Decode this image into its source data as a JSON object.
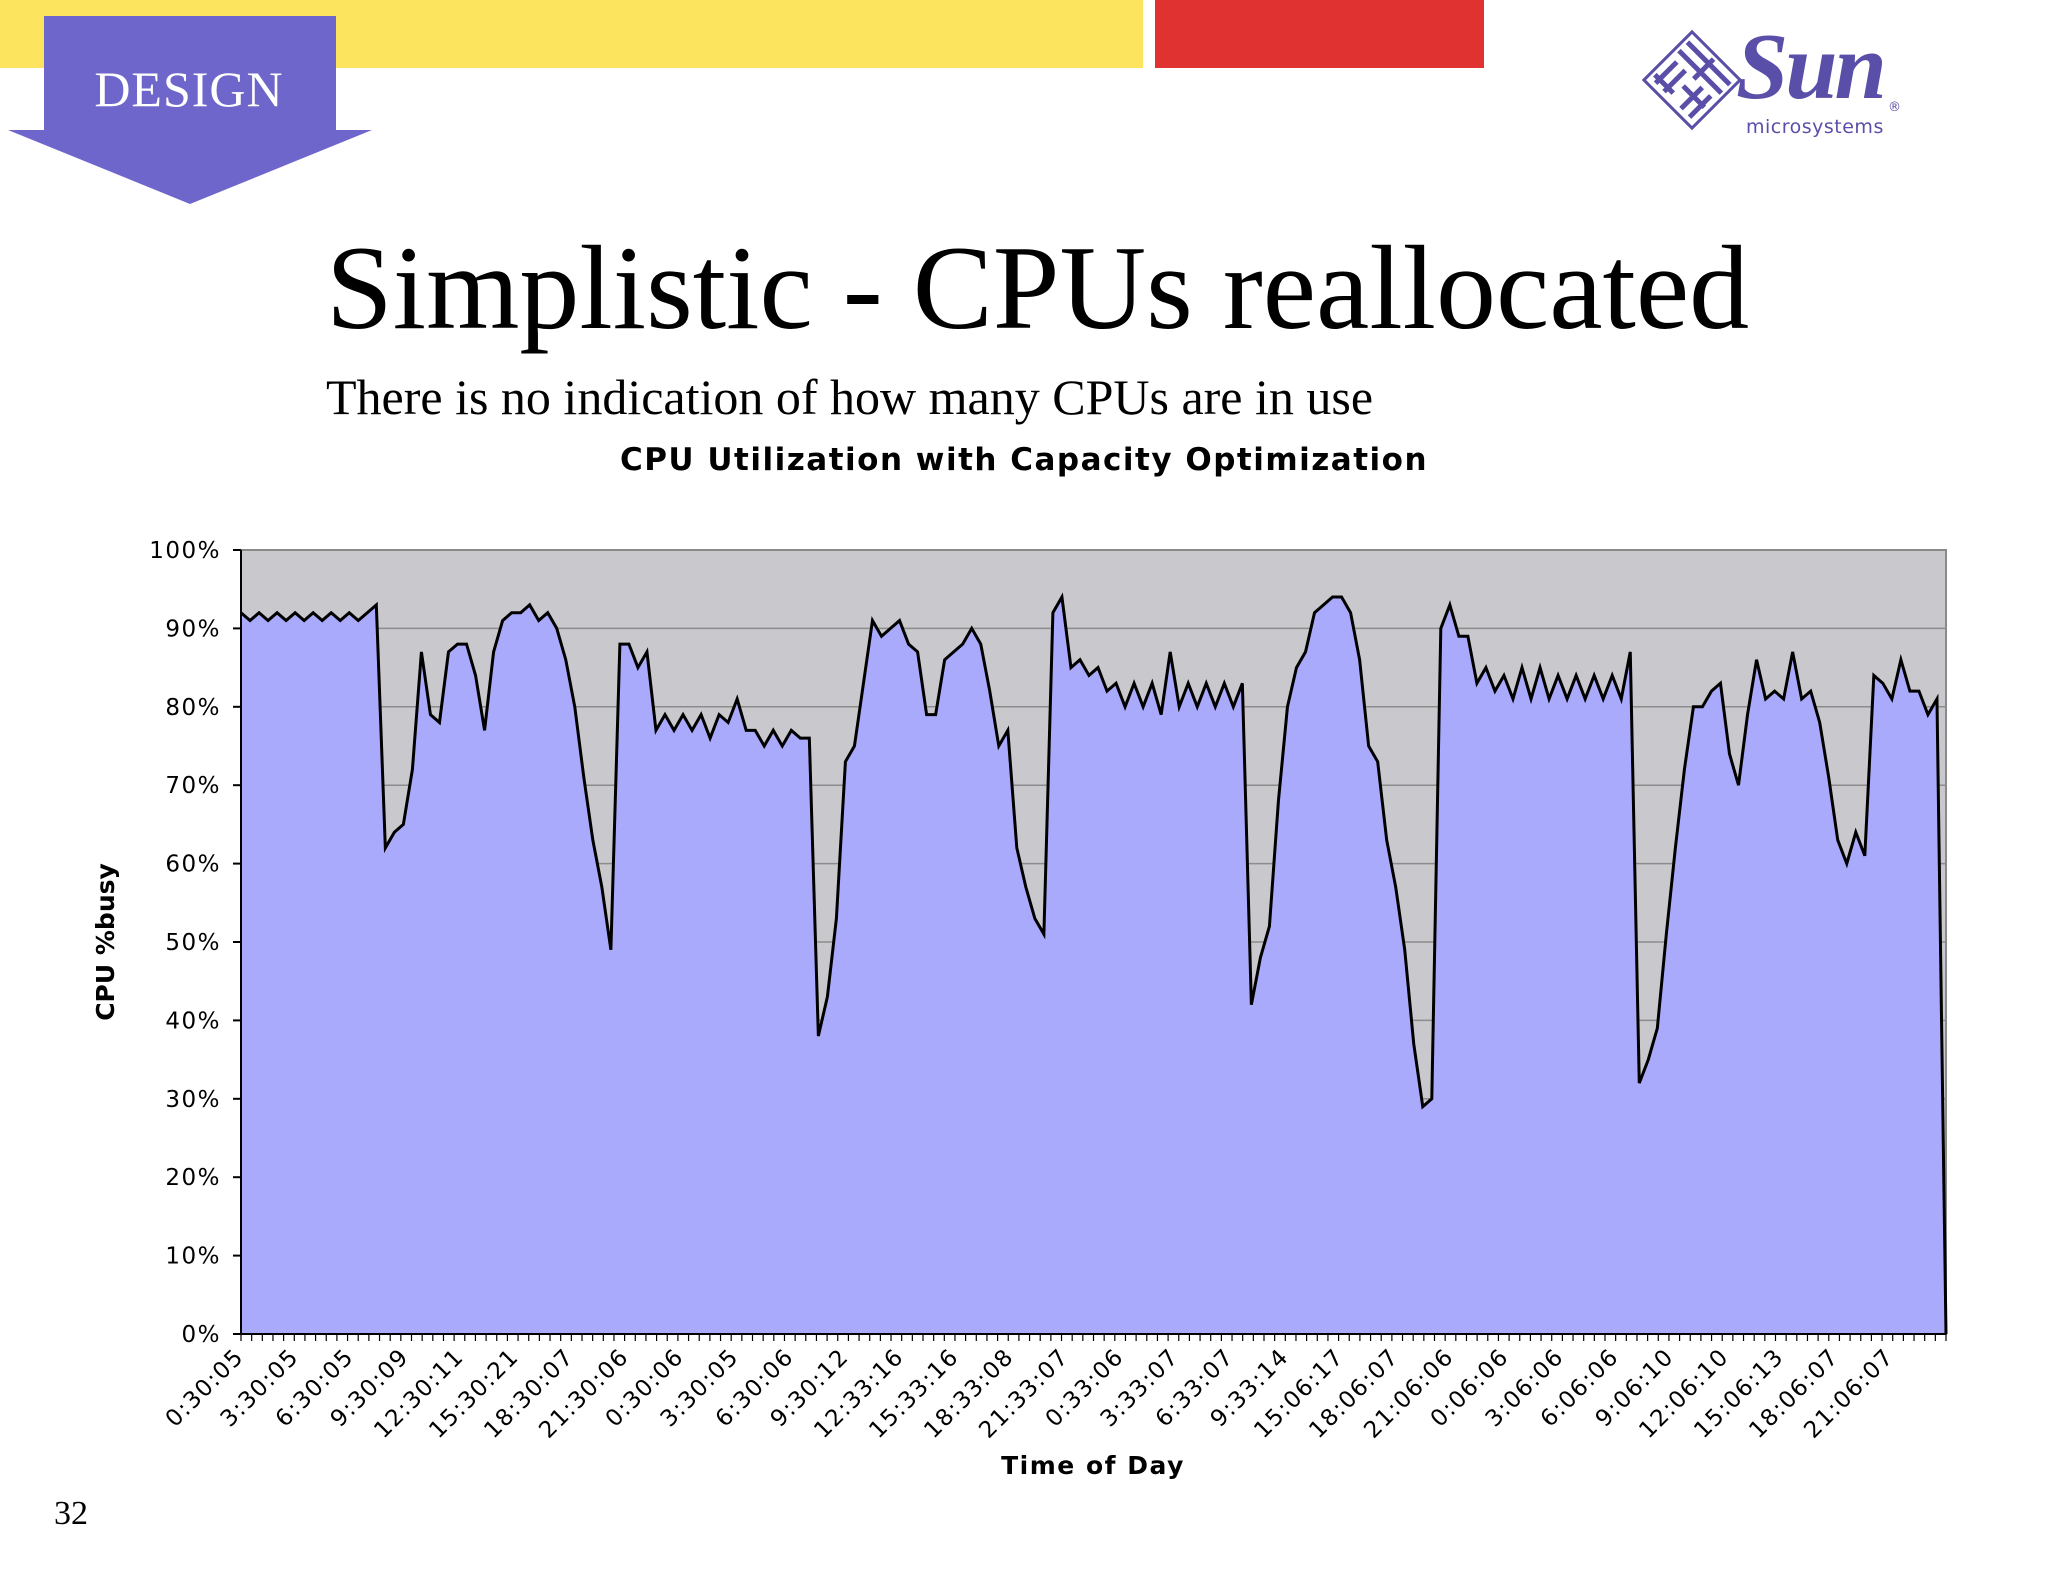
{
  "slide": {
    "section_label": "DESIGN",
    "logo_word": "Sun",
    "logo_sub": "microsystems",
    "logo_reg": "®",
    "title": "Simplistic - CPUs reallocated",
    "subtitle": "There is no indication of how many CPUs are in use",
    "page_number": "32",
    "colors": {
      "yellow_bar": "#fde45e",
      "red_bar": "#e03331",
      "badge": "#6f66cc",
      "logo": "#5a4fa8"
    }
  },
  "chart_data": {
    "type": "area",
    "title": "CPU Utilization with Capacity Optimization",
    "xlabel": "Time of Day",
    "ylabel": "CPU %busy",
    "ylim": [
      0,
      100
    ],
    "yticks": [
      "0%",
      "10%",
      "20%",
      "30%",
      "40%",
      "50%",
      "60%",
      "70%",
      "80%",
      "90%",
      "100%"
    ],
    "xtick_labels": [
      "0:30:05",
      "3:30:05",
      "6:30:05",
      "9:30:09",
      "12:30:11",
      "15:30:21",
      "18:30:07",
      "21:30:06",
      "0:30:06",
      "3:30:05",
      "6:30:06",
      "9:30:12",
      "12:33:16",
      "15:33:16",
      "18:33:08",
      "21:33:07",
      "0:33:06",
      "3:33:07",
      "6:33:07",
      "9:33:14",
      "15:06:17",
      "18:06:07",
      "21:06:06",
      "0:06:06",
      "3:06:06",
      "6:06:06",
      "9:06:10",
      "12:06:10",
      "15:06:13",
      "18:06:07",
      "21:06:07"
    ],
    "grid": true,
    "legend": "none",
    "fill_color": "#aaaafc",
    "line_color": "#000000",
    "plot_background": "#c9c8cd",
    "values": [
      92,
      91,
      92,
      91,
      92,
      91,
      92,
      91,
      92,
      91,
      92,
      91,
      92,
      91,
      92,
      93,
      62,
      64,
      65,
      72,
      87,
      79,
      78,
      87,
      88,
      88,
      84,
      77,
      87,
      91,
      92,
      92,
      93,
      91,
      92,
      90,
      86,
      80,
      71,
      63,
      57,
      49,
      88,
      88,
      85,
      87,
      77,
      79,
      77,
      79,
      77,
      79,
      76,
      79,
      78,
      81,
      77,
      77,
      75,
      77,
      75,
      77,
      76,
      76,
      38,
      43,
      53,
      73,
      75,
      83,
      91,
      89,
      90,
      91,
      88,
      87,
      79,
      79,
      86,
      87,
      88,
      90,
      88,
      82,
      75,
      77,
      62,
      57,
      53,
      51,
      92,
      94,
      85,
      86,
      84,
      85,
      82,
      83,
      80,
      83,
      80,
      83,
      79,
      87,
      80,
      83,
      80,
      83,
      80,
      83,
      80,
      83,
      42,
      48,
      52,
      68,
      80,
      85,
      87,
      92,
      93,
      94,
      94,
      92,
      86,
      75,
      73,
      63,
      57,
      49,
      37,
      29,
      30,
      90,
      93,
      89,
      89,
      83,
      85,
      82,
      84,
      81,
      85,
      81,
      85,
      81,
      84,
      81,
      84,
      81,
      84,
      81,
      84,
      81,
      87,
      32,
      35,
      39,
      51,
      62,
      72,
      80,
      80,
      82,
      83,
      74,
      70,
      79,
      86,
      81,
      82,
      81,
      87,
      81,
      82,
      78,
      71,
      63,
      60,
      64,
      61,
      84,
      83,
      81,
      86,
      82,
      82,
      79,
      81,
      0
    ]
  }
}
